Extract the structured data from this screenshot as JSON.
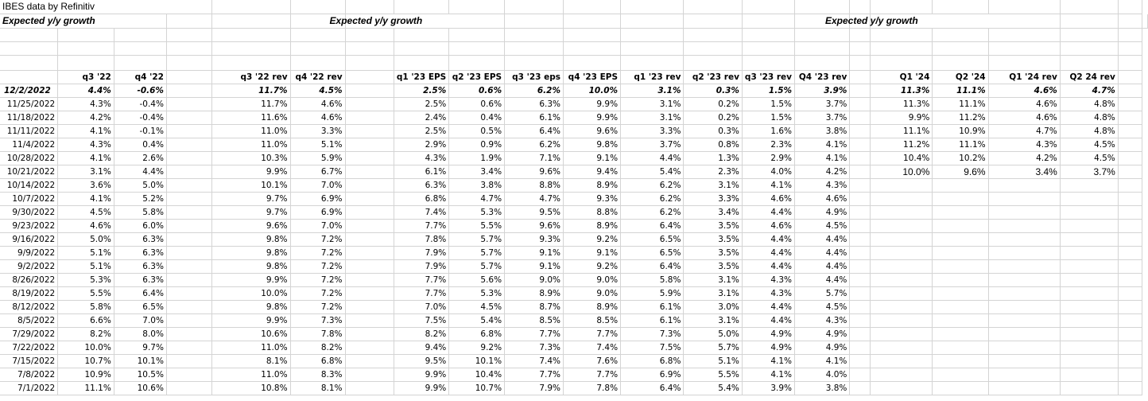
{
  "title": "IBES data by Refinitiv",
  "section_label": "Expected y/y growth",
  "headers": {
    "q3_22": "q3 '22",
    "q4_22": "q4 '22",
    "q3_22_rev": "q3 '22 rev",
    "q4_22_rev": "q4 '22 rev",
    "q1_23_eps": "q1 '23 EPS",
    "q2_23_eps": "q2 '23 EPS",
    "q3_23_eps": "q3 '23 eps",
    "q4_23_eps": "q4 '23 EPS",
    "q1_23_rev": "q1 '23 rev",
    "q2_23_rev": "q2 '23 rev",
    "q3_23_rev": "q3 '23 rev",
    "q4_23_rev": "Q4 '23 rev",
    "q1_24": "Q1 '24",
    "q2_24": "Q2 '24",
    "q1_24_rev": "Q1 '24 rev",
    "q2_24_rev": "Q2 24 rev"
  },
  "rows": [
    {
      "date": "12/2/2022",
      "v": [
        "4.4%",
        "-0.6%",
        "11.7%",
        "4.5%",
        "2.5%",
        "0.6%",
        "6.2%",
        "10.0%",
        "3.1%",
        "0.3%",
        "1.5%",
        "3.9%",
        "11.3%",
        "11.1%",
        "4.6%",
        "4.7%"
      ]
    },
    {
      "date": "11/25/2022",
      "v": [
        "4.3%",
        "-0.4%",
        "11.7%",
        "4.6%",
        "2.5%",
        "0.6%",
        "6.3%",
        "9.9%",
        "3.1%",
        "0.2%",
        "1.5%",
        "3.7%",
        "11.3%",
        "11.1%",
        "4.6%",
        "4.8%"
      ]
    },
    {
      "date": "11/18/2022",
      "v": [
        "4.2%",
        "-0.4%",
        "11.6%",
        "4.6%",
        "2.4%",
        "0.4%",
        "6.1%",
        "9.9%",
        "3.1%",
        "0.2%",
        "1.5%",
        "3.7%",
        "9.9%",
        "11.2%",
        "4.6%",
        "4.8%"
      ]
    },
    {
      "date": "11/11/2022",
      "v": [
        "4.1%",
        "-0.1%",
        "11.0%",
        "3.3%",
        "2.5%",
        "0.5%",
        "6.4%",
        "9.6%",
        "3.3%",
        "0.3%",
        "1.6%",
        "3.8%",
        "11.1%",
        "10.9%",
        "4.7%",
        "4.8%"
      ]
    },
    {
      "date": "11/4/2022",
      "v": [
        "4.3%",
        "0.4%",
        "11.0%",
        "5.1%",
        "2.9%",
        "0.9%",
        "6.2%",
        "9.8%",
        "3.7%",
        "0.8%",
        "2.3%",
        "4.1%",
        "11.2%",
        "11.1%",
        "4.3%",
        "4.5%"
      ]
    },
    {
      "date": "10/28/2022",
      "v": [
        "4.1%",
        "2.6%",
        "10.3%",
        "5.9%",
        "4.3%",
        "1.9%",
        "7.1%",
        "9.1%",
        "4.4%",
        "1.3%",
        "2.9%",
        "4.1%",
        "10.4%",
        "10.2%",
        "4.2%",
        "4.5%"
      ]
    },
    {
      "date": "10/21/2022",
      "v": [
        "3.1%",
        "4.4%",
        "9.9%",
        "6.7%",
        "6.1%",
        "3.4%",
        "9.6%",
        "9.4%",
        "5.4%",
        "2.3%",
        "4.0%",
        "4.2%",
        "10.0%",
        "9.6%",
        "3.4%",
        "3.7%"
      ]
    },
    {
      "date": "10/14/2022",
      "v": [
        "3.6%",
        "5.0%",
        "10.1%",
        "7.0%",
        "6.3%",
        "3.8%",
        "8.8%",
        "8.9%",
        "6.2%",
        "3.1%",
        "4.1%",
        "4.3%",
        "",
        "",
        "",
        ""
      ]
    },
    {
      "date": "10/7/2022",
      "v": [
        "4.1%",
        "5.2%",
        "9.7%",
        "6.9%",
        "6.8%",
        "4.7%",
        "4.7%",
        "9.3%",
        "6.2%",
        "3.3%",
        "4.6%",
        "4.6%",
        "",
        "",
        "",
        ""
      ]
    },
    {
      "date": "9/30/2022",
      "v": [
        "4.5%",
        "5.8%",
        "9.7%",
        "6.9%",
        "7.4%",
        "5.3%",
        "9.5%",
        "8.8%",
        "6.2%",
        "3.4%",
        "4.4%",
        "4.9%",
        "",
        "",
        "",
        ""
      ]
    },
    {
      "date": "9/23/2022",
      "v": [
        "4.6%",
        "6.0%",
        "9.6%",
        "7.0%",
        "7.7%",
        "5.5%",
        "9.6%",
        "8.9%",
        "6.4%",
        "3.5%",
        "4.6%",
        "4.5%",
        "",
        "",
        "",
        ""
      ]
    },
    {
      "date": "9/16/2022",
      "v": [
        "5.0%",
        "6.3%",
        "9.8%",
        "7.2%",
        "7.8%",
        "5.7%",
        "9.3%",
        "9.2%",
        "6.5%",
        "3.5%",
        "4.4%",
        "4.4%",
        "",
        "",
        "",
        ""
      ]
    },
    {
      "date": "9/9/2022",
      "v": [
        "5.1%",
        "6.3%",
        "9.8%",
        "7.2%",
        "7.9%",
        "5.7%",
        "9.1%",
        "9.1%",
        "6.5%",
        "3.5%",
        "4.4%",
        "4.4%",
        "",
        "",
        "",
        ""
      ]
    },
    {
      "date": "9/2/2022",
      "v": [
        "5.1%",
        "6.3%",
        "9.8%",
        "7.2%",
        "7.9%",
        "5.7%",
        "9.1%",
        "9.2%",
        "6.4%",
        "3.5%",
        "4.4%",
        "4.4%",
        "",
        "",
        "",
        ""
      ]
    },
    {
      "date": "8/26/2022",
      "v": [
        "5.3%",
        "6.3%",
        "9.9%",
        "7.2%",
        "7.7%",
        "5.6%",
        "9.0%",
        "9.0%",
        "5.8%",
        "3.1%",
        "4.3%",
        "4.4%",
        "",
        "",
        "",
        ""
      ]
    },
    {
      "date": "8/19/2022",
      "v": [
        "5.5%",
        "6.4%",
        "10.0%",
        "7.2%",
        "7.7%",
        "5.3%",
        "8.9%",
        "9.0%",
        "5.9%",
        "3.1%",
        "4.3%",
        "5.7%",
        "",
        "",
        "",
        ""
      ]
    },
    {
      "date": "8/12/2022",
      "v": [
        "5.8%",
        "6.5%",
        "9.8%",
        "7.2%",
        "7.0%",
        "4.5%",
        "8.7%",
        "8.9%",
        "6.1%",
        "3.0%",
        "4.4%",
        "4.5%",
        "",
        "",
        "",
        ""
      ]
    },
    {
      "date": "8/5/2022",
      "v": [
        "6.6%",
        "7.0%",
        "9.9%",
        "7.3%",
        "7.5%",
        "5.4%",
        "8.5%",
        "8.5%",
        "6.1%",
        "3.1%",
        "4.4%",
        "4.3%",
        "",
        "",
        "",
        ""
      ]
    },
    {
      "date": "7/29/2022",
      "v": [
        "8.2%",
        "8.0%",
        "10.6%",
        "7.8%",
        "8.2%",
        "6.8%",
        "7.7%",
        "7.7%",
        "7.3%",
        "5.0%",
        "4.9%",
        "4.9%",
        "",
        "",
        "",
        ""
      ]
    },
    {
      "date": "7/22/2022",
      "v": [
        "10.0%",
        "9.7%",
        "11.0%",
        "8.2%",
        "9.4%",
        "9.2%",
        "7.3%",
        "7.4%",
        "7.5%",
        "5.7%",
        "4.9%",
        "4.9%",
        "",
        "",
        "",
        ""
      ]
    },
    {
      "date": "7/15/2022",
      "v": [
        "10.7%",
        "10.1%",
        "8.1%",
        "6.8%",
        "9.5%",
        "10.1%",
        "7.4%",
        "7.6%",
        "6.8%",
        "5.1%",
        "4.1%",
        "4.1%",
        "",
        "",
        "",
        ""
      ]
    },
    {
      "date": "7/8/2022",
      "v": [
        "10.9%",
        "10.5%",
        "11.0%",
        "8.3%",
        "9.9%",
        "10.4%",
        "7.7%",
        "7.7%",
        "6.9%",
        "5.5%",
        "4.1%",
        "4.0%",
        "",
        "",
        "",
        ""
      ]
    },
    {
      "date": "7/1/2022",
      "v": [
        "11.1%",
        "10.6%",
        "10.8%",
        "8.1%",
        "9.9%",
        "10.7%",
        "7.9%",
        "7.8%",
        "6.4%",
        "5.4%",
        "3.9%",
        "3.8%",
        "",
        "",
        "",
        ""
      ]
    }
  ]
}
